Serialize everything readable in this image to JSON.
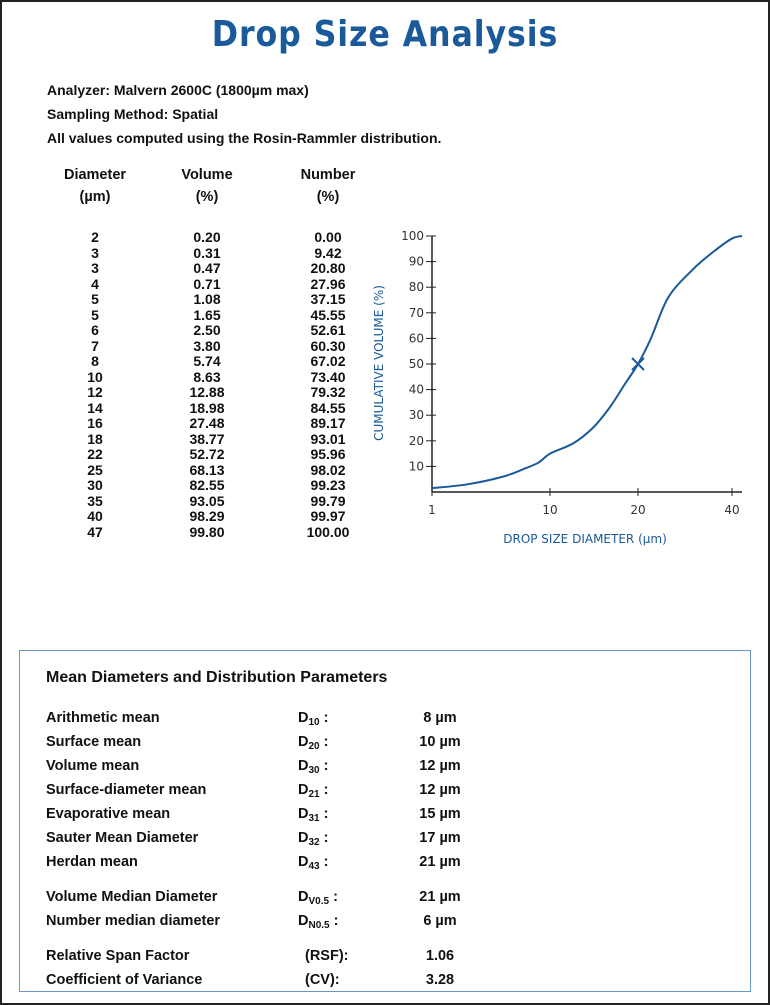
{
  "title": "Drop Size Analysis",
  "info": {
    "analyzer": "Analyzer: Malvern 2600C (1800µm max)",
    "sampling": "Sampling Method: Spatial",
    "note": "All values computed using the Rosin-Rammler distribution."
  },
  "table": {
    "headers": [
      {
        "top": "Diameter",
        "bottom": "(µm)"
      },
      {
        "top": "Volume",
        "bottom": "(%)"
      },
      {
        "top": "Number",
        "bottom": "(%)"
      }
    ],
    "rows": [
      [
        "2",
        "0.20",
        "0.00"
      ],
      [
        "3",
        "0.31",
        "9.42"
      ],
      [
        "3",
        "0.47",
        "20.80"
      ],
      [
        "4",
        "0.71",
        "27.96"
      ],
      [
        "5",
        "1.08",
        "37.15"
      ],
      [
        "5",
        "1.65",
        "45.55"
      ],
      [
        "6",
        "2.50",
        "52.61"
      ],
      [
        "7",
        "3.80",
        "60.30"
      ],
      [
        "8",
        "5.74",
        "67.02"
      ],
      [
        "10",
        "8.63",
        "73.40"
      ],
      [
        "12",
        "12.88",
        "79.32"
      ],
      [
        "14",
        "18.98",
        "84.55"
      ],
      [
        "16",
        "27.48",
        "89.17"
      ],
      [
        "18",
        "38.77",
        "93.01"
      ],
      [
        "22",
        "52.72",
        "95.96"
      ],
      [
        "25",
        "68.13",
        "98.02"
      ],
      [
        "30",
        "82.55",
        "99.23"
      ],
      [
        "35",
        "93.05",
        "99.79"
      ],
      [
        "40",
        "98.29",
        "99.97"
      ],
      [
        "47",
        "99.80",
        "100.00"
      ]
    ]
  },
  "chart_data": {
    "type": "line",
    "xlabel": "DROP SIZE DIAMETER (µm)",
    "ylabel": "CUMULATIVE VOLUME (%)",
    "x_ticks": [
      "1",
      "10",
      "20",
      "40"
    ],
    "y_ticks": [
      "10",
      "20",
      "30",
      "40",
      "50",
      "60",
      "70",
      "80",
      "90",
      "100"
    ],
    "ylim": [
      0,
      100
    ],
    "xscale": "log",
    "series": [
      {
        "x": [
          1,
          2,
          4,
          6,
          8,
          10,
          12,
          14,
          16,
          18,
          20,
          22,
          25,
          30,
          35,
          40,
          42
        ],
        "y": [
          1.5,
          3,
          6,
          9,
          11.5,
          15,
          19,
          25,
          33,
          42,
          50,
          60,
          76,
          87,
          94,
          99,
          100
        ]
      }
    ],
    "annotations": [
      {
        "x": 20,
        "y": 50,
        "marker": "x"
      }
    ],
    "grid": false,
    "color": "#1a5a9a"
  },
  "means": {
    "title": "Mean Diameters and Distribution Parameters",
    "rows": [
      {
        "label": "Arithmetic mean",
        "sym": "D",
        "sub": "10",
        "suffix": " :",
        "value": "8 µm"
      },
      {
        "label": "Surface mean",
        "sym": "D",
        "sub": "20",
        "suffix": " :",
        "value": "10 µm"
      },
      {
        "label": "Volume mean",
        "sym": "D",
        "sub": "30",
        "suffix": " :",
        "value": "12 µm"
      },
      {
        "label": "Surface-diameter mean",
        "sym": "D",
        "sub": "21",
        "suffix": " :",
        "value": "12 µm"
      },
      {
        "label": "Evaporative mean",
        "sym": "D",
        "sub": "31",
        "suffix": " :",
        "value": "15 µm"
      },
      {
        "label": "Sauter Mean Diameter",
        "sym": "D",
        "sub": "32",
        "suffix": " :",
        "value": "17 µm"
      },
      {
        "label": "Herdan mean",
        "sym": "D",
        "sub": "43",
        "suffix": " :",
        "value": "21 µm"
      },
      {
        "label": "Volume Median Diameter",
        "sym": "D",
        "sub": "V0.5",
        "suffix": " :",
        "value": "21 µm"
      },
      {
        "label": "Number median diameter",
        "sym": "D",
        "sub": "N0.5",
        "suffix": " :",
        "value": "6 µm"
      },
      {
        "label": "Relative Span Factor",
        "sym": "(RSF):",
        "sub": "",
        "suffix": "",
        "value": "1.06"
      },
      {
        "label": "Coefficient of Variance",
        "sym": "(CV):",
        "sub": "",
        "suffix": "",
        "value": "3.28"
      }
    ]
  }
}
